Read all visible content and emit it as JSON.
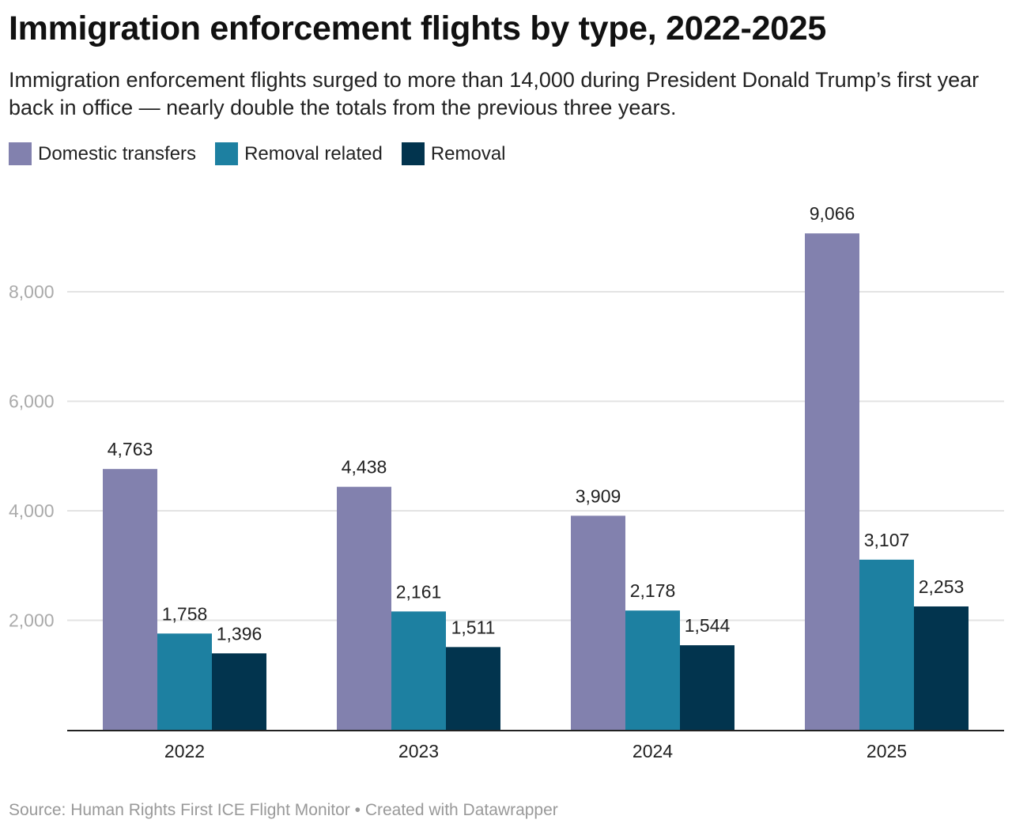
{
  "chart_data": {
    "type": "bar",
    "title": "Immigration enforcement flights by type, 2022-2025",
    "subtitle": "Immigration enforcement flights surged to more than 14,000 during President Donald Trump’s first year back in office — nearly double the totals from the previous three years.",
    "categories": [
      "2022",
      "2023",
      "2024",
      "2025"
    ],
    "series": [
      {
        "name": "Domestic transfers",
        "color": "#8281AE",
        "values": [
          4763,
          4438,
          3909,
          9066
        ],
        "labels": [
          "4,763",
          "4,438",
          "3,909",
          "9,066"
        ]
      },
      {
        "name": "Removal related",
        "color": "#1D80A1",
        "values": [
          1758,
          2161,
          2178,
          3107
        ],
        "labels": [
          "1,758",
          "2,161",
          "2,178",
          "3,107"
        ]
      },
      {
        "name": "Removal",
        "color": "#02344E",
        "values": [
          1396,
          1511,
          1544,
          2253
        ],
        "labels": [
          "1,396",
          "1,511",
          "1,544",
          "2,253"
        ]
      }
    ],
    "yticks": [
      2000,
      4000,
      6000,
      8000
    ],
    "ytick_labels": [
      "2,000",
      "4,000",
      "6,000",
      "8,000"
    ],
    "ylim": [
      0,
      9066
    ],
    "grid": true,
    "legend_position": "top-left",
    "source": "Source: Human Rights First ICE Flight Monitor • Created with Datawrapper"
  }
}
